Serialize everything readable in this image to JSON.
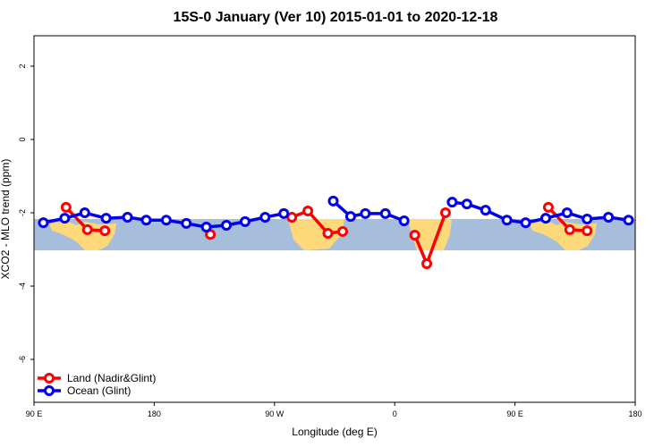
{
  "chart_data": {
    "type": "line",
    "title": "15S-0 January (Ver 10)   2015-01-01 to 2020-12-18",
    "x_label": "Longitude (deg E)",
    "y_label": "XCO2 - MLO trend (ppm)",
    "xlim": [
      90,
      540
    ],
    "xticks": [
      {
        "value": 90,
        "label": "90 E"
      },
      {
        "value": 180,
        "label": "180"
      },
      {
        "value": 270,
        "label": "90 W"
      },
      {
        "value": 360,
        "label": "0"
      },
      {
        "value": 450,
        "label": "90 E"
      },
      {
        "value": 540,
        "label": "180"
      }
    ],
    "ylim": [
      -7.17,
      2.83
    ],
    "yticks": [
      -6,
      -4,
      -2,
      0,
      2
    ],
    "legend": "bottom-left",
    "series": [
      {
        "name": "Land (Nadir&Glint)",
        "color": "#ff0000",
        "x": [
          114,
          130,
          143,
          null,
          222,
          null,
          283,
          295,
          310,
          321,
          null,
          375,
          384,
          398,
          null,
          475,
          491,
          504
        ],
        "values": [
          -1.85,
          -2.46,
          -2.49,
          null,
          -2.59,
          null,
          -2.12,
          -1.95,
          -2.56,
          -2.51,
          null,
          -2.61,
          -3.39,
          -2.0,
          null,
          -1.85,
          -2.46,
          -2.49
        ]
      },
      {
        "name": "Ocean (Glint)",
        "color": "#0000ee",
        "x": [
          97,
          113,
          128,
          144,
          160,
          174,
          189,
          204,
          219,
          234,
          248,
          263,
          277,
          null,
          314,
          327,
          338,
          353,
          367,
          null,
          403,
          414,
          428,
          444,
          458,
          473,
          489,
          504,
          520,
          535
        ],
        "values": [
          -2.27,
          -2.15,
          -2.0,
          -2.15,
          -2.12,
          -2.2,
          -2.2,
          -2.29,
          -2.39,
          -2.34,
          -2.24,
          -2.12,
          -2.02,
          null,
          -1.68,
          -2.1,
          -2.02,
          -2.02,
          -2.22,
          null,
          -1.71,
          -1.76,
          -1.93,
          -2.2,
          -2.27,
          -2.15,
          -2.0,
          -2.17,
          -2.12,
          -2.2
        ]
      }
    ]
  }
}
